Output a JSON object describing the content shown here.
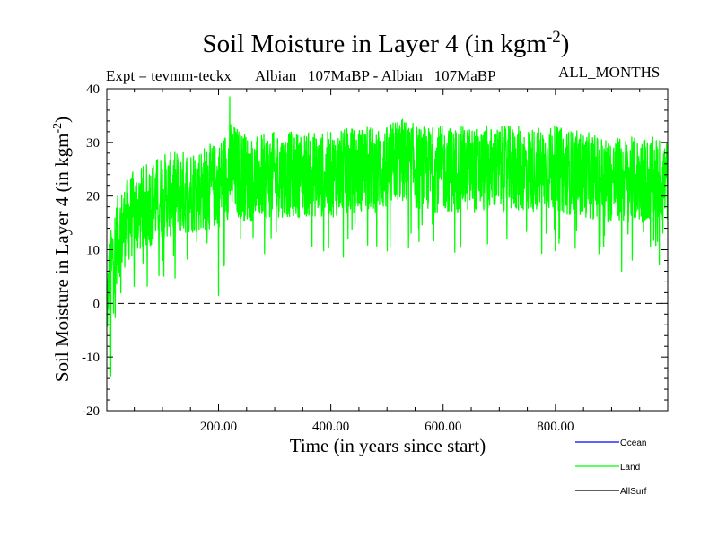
{
  "chart_data": {
    "type": "line",
    "title": "Soil Moisture in Layer 4 (in kgm",
    "title_sup": "-2",
    "title_close": ")",
    "subtitle_left": "Expt = tevmm-teckx",
    "subtitle_mid": "Albian   107MaBP - Albian   107MaBP",
    "subtitle_right": "ALL_MONTHS",
    "xlabel": "Time (in years since start)",
    "ylabel": "Soil Moisture in Layer 4 (in kgm",
    "ylabel_sup": "-2",
    "ylabel_close": ")",
    "xlim": [
      1,
      1000
    ],
    "ylim": [
      -20,
      40
    ],
    "x_ticks": [
      200,
      400,
      600,
      800
    ],
    "x_tick_labels": [
      "200.00",
      "400.00",
      "600.00",
      "800.00"
    ],
    "y_ticks": [
      -20,
      -10,
      0,
      10,
      20,
      30,
      40
    ],
    "y_tick_labels": [
      "-20",
      "-10",
      "0",
      "10",
      "20",
      "30",
      "40"
    ],
    "zero_line": 0,
    "series": [
      {
        "name": "Ocean",
        "color": "#0000ff",
        "values": []
      },
      {
        "name": "Land",
        "color": "#00ff00",
        "envelope": {
          "x": [
            1,
            5,
            12,
            20,
            35,
            50,
            70,
            100,
            150,
            200,
            220,
            260,
            300,
            350,
            400,
            450,
            500,
            520,
            560,
            600,
            650,
            700,
            750,
            800,
            850,
            900,
            940,
            1000
          ],
          "mean": [
            -2,
            4,
            9,
            12,
            15,
            17,
            18,
            20,
            21,
            22,
            25,
            23,
            24,
            24,
            24,
            25,
            25,
            27,
            25,
            25,
            25,
            25,
            25,
            25,
            24,
            23,
            23,
            23
          ],
          "spread": [
            6,
            7,
            8,
            8,
            8,
            8,
            8,
            8,
            8,
            8,
            9,
            8,
            8,
            8,
            8,
            8,
            8,
            8,
            8,
            8,
            8,
            8,
            8,
            8,
            8,
            8,
            8,
            8
          ]
        },
        "min_value": -13.5,
        "min_at_year": 8,
        "max_value": 38.5,
        "max_at_year": 220,
        "notable_lows": [
          [
            200,
            1.5
          ],
          [
            918,
            6
          ]
        ]
      },
      {
        "name": "AllSurf",
        "color": "#000000",
        "values": []
      }
    ],
    "legend_position": "bottom-right"
  }
}
